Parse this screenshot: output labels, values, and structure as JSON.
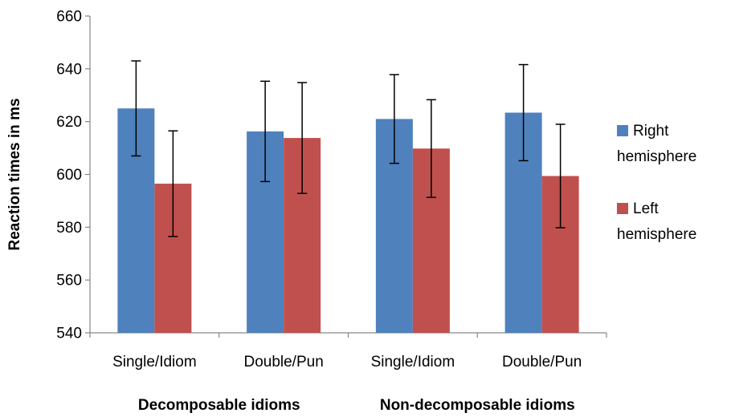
{
  "chart_data": {
    "type": "bar",
    "categories": [
      "Single/Idiom",
      "Double/Pun",
      "Single/Idiom",
      "Double/Pun"
    ],
    "groups": [
      {
        "label": "Decomposable idioms",
        "categories": [
          0,
          1
        ]
      },
      {
        "label": "Non-decomposable idioms",
        "categories": [
          2,
          3
        ]
      }
    ],
    "series": [
      {
        "name": "Right hemisphere",
        "legend_lines": [
          "Right",
          "hemisphere"
        ],
        "color": "#4F81BD",
        "values": [
          625,
          616.3,
          621,
          623.4
        ],
        "error": [
          18,
          19,
          16.8,
          18.2
        ]
      },
      {
        "name": "Left hemisphere",
        "legend_lines": [
          "Left",
          "hemisphere"
        ],
        "color": "#C0504D",
        "values": [
          596.5,
          613.8,
          609.8,
          599.4
        ],
        "error": [
          20,
          21,
          18.5,
          19.6
        ]
      }
    ],
    "ylabel": "Reaction times in ms",
    "xlabel": "",
    "ylim": [
      540,
      660
    ],
    "yticks": [
      "540",
      "560",
      "580",
      "600",
      "620",
      "640",
      "660"
    ],
    "grid": false,
    "legend_position": "right"
  }
}
